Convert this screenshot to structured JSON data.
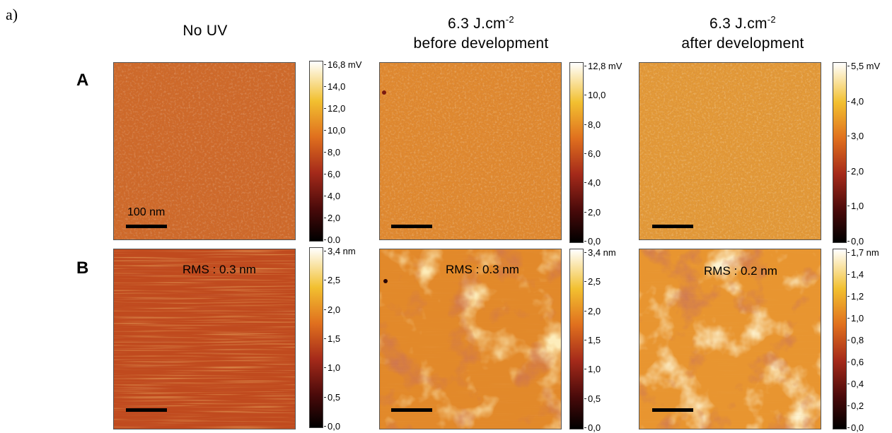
{
  "panel_label": "a)",
  "row_labels": [
    "A",
    "B"
  ],
  "columns": [
    {
      "title_line1": "No UV",
      "exp": "",
      "title_line2": ""
    },
    {
      "title_line1": "6.3 J.cm",
      "exp": "-2",
      "title_line2": "before development"
    },
    {
      "title_line1": "6.3 J.cm",
      "exp": "-2",
      "title_line2": "after development"
    }
  ],
  "scale_label": "100 nm",
  "rms": [
    "RMS : 0.3 nm",
    "RMS : 0.3 nm",
    "RMS : 0.2 nm"
  ],
  "colorbars": {
    "A": [
      [
        "16,8 mV",
        "14,0",
        "12,0",
        "10,0",
        "8,0",
        "6,0",
        "4,0",
        "2,0",
        "0.0"
      ],
      [
        "12,8 mV",
        "10,0",
        "8,0",
        "6,0",
        "4,0",
        "2,0",
        "0,0"
      ],
      [
        "5,5 mV",
        "4,0",
        "3,0",
        "2,0",
        "1,0",
        "0,0"
      ]
    ],
    "B": [
      [
        "3,4 nm",
        "2,5",
        "2,0",
        "1,5",
        "1,0",
        "0,5",
        "0,0"
      ],
      [
        "3,4 nm",
        "2,5",
        "2,0",
        "1,5",
        "1,0",
        "0,5",
        "0,0"
      ],
      [
        "1,7 nm",
        "1,4",
        "1,2",
        "1,0",
        "0,8",
        "0,6",
        "0,4",
        "0,2",
        "0,0"
      ]
    ]
  },
  "colormap": [
    "#000000",
    "#7a1111",
    "#d4561b",
    "#f0a020",
    "#ffffff"
  ]
}
